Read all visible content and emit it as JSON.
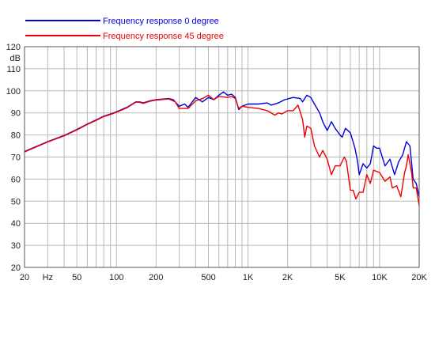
{
  "chart_data": {
    "type": "line",
    "title": "",
    "xscale": "log",
    "xlim": [
      20,
      20000
    ],
    "ylim": [
      20,
      120
    ],
    "ylabel": "dB",
    "grid": true,
    "legend_position": "top-left",
    "x_ticks": [
      {
        "value": 20,
        "label": "20"
      },
      {
        "value": 30,
        "label": "Hz"
      },
      {
        "value": 50,
        "label": "50"
      },
      {
        "value": 100,
        "label": "100"
      },
      {
        "value": 200,
        "label": "200"
      },
      {
        "value": 500,
        "label": "500"
      },
      {
        "value": 1000,
        "label": "1K"
      },
      {
        "value": 2000,
        "label": "2K"
      },
      {
        "value": 5000,
        "label": "5K"
      },
      {
        "value": 10000,
        "label": "10K"
      },
      {
        "value": 20000,
        "label": "20K"
      }
    ],
    "y_ticks": [
      {
        "value": 20,
        "label": "20"
      },
      {
        "value": 30,
        "label": "30"
      },
      {
        "value": 40,
        "label": "40"
      },
      {
        "value": 50,
        "label": "50"
      },
      {
        "value": 60,
        "label": "60"
      },
      {
        "value": 70,
        "label": "70"
      },
      {
        "value": 80,
        "label": "80"
      },
      {
        "value": 90,
        "label": "90"
      },
      {
        "value": 100,
        "label": "100"
      },
      {
        "value": 110,
        "label": "110"
      },
      {
        "value": 120,
        "label": "120"
      }
    ],
    "series": [
      {
        "name": "Frequency response 0 degree",
        "color": "#0000dd",
        "points": [
          [
            20,
            72.5
          ],
          [
            30,
            77
          ],
          [
            40,
            79.8
          ],
          [
            50,
            82.5
          ],
          [
            60,
            85
          ],
          [
            70,
            86.8
          ],
          [
            80,
            88.5
          ],
          [
            90,
            89.5
          ],
          [
            100,
            90.5
          ],
          [
            120,
            92.5
          ],
          [
            140,
            95
          ],
          [
            150,
            95
          ],
          [
            160,
            94.5
          ],
          [
            180,
            95.5
          ],
          [
            200,
            96
          ],
          [
            250,
            96.5
          ],
          [
            270,
            96
          ],
          [
            300,
            93
          ],
          [
            330,
            94
          ],
          [
            350,
            92.5
          ],
          [
            400,
            97
          ],
          [
            450,
            95
          ],
          [
            500,
            97
          ],
          [
            550,
            96
          ],
          [
            600,
            98
          ],
          [
            650,
            99.5
          ],
          [
            700,
            98
          ],
          [
            750,
            98.5
          ],
          [
            800,
            97
          ],
          [
            850,
            91.5
          ],
          [
            900,
            93
          ],
          [
            1000,
            94
          ],
          [
            1200,
            94
          ],
          [
            1400,
            94.5
          ],
          [
            1500,
            93.5
          ],
          [
            1700,
            94.5
          ],
          [
            1900,
            96
          ],
          [
            2200,
            97
          ],
          [
            2500,
            96.5
          ],
          [
            2600,
            95
          ],
          [
            2800,
            98
          ],
          [
            3000,
            97
          ],
          [
            3200,
            94
          ],
          [
            3500,
            90
          ],
          [
            3700,
            86
          ],
          [
            4000,
            82
          ],
          [
            4300,
            86
          ],
          [
            4600,
            83
          ],
          [
            5000,
            80
          ],
          [
            5200,
            79
          ],
          [
            5500,
            83
          ],
          [
            6000,
            81
          ],
          [
            6500,
            74
          ],
          [
            6800,
            68
          ],
          [
            7000,
            62
          ],
          [
            7500,
            67
          ],
          [
            8000,
            65
          ],
          [
            8500,
            67
          ],
          [
            9000,
            75
          ],
          [
            9500,
            74
          ],
          [
            10000,
            74
          ],
          [
            11000,
            66
          ],
          [
            12000,
            69
          ],
          [
            13000,
            62
          ],
          [
            14000,
            68
          ],
          [
            15000,
            71
          ],
          [
            16000,
            77
          ],
          [
            17000,
            75
          ],
          [
            18000,
            60
          ],
          [
            19000,
            58
          ],
          [
            20000,
            52
          ]
        ]
      },
      {
        "name": "Frequency response 45 degree",
        "color": "#ee0000",
        "points": [
          [
            20,
            72.3
          ],
          [
            30,
            76.8
          ],
          [
            40,
            79.6
          ],
          [
            50,
            82.3
          ],
          [
            60,
            84.8
          ],
          [
            70,
            86.6
          ],
          [
            80,
            88.3
          ],
          [
            90,
            89.3
          ],
          [
            100,
            90.3
          ],
          [
            120,
            92.3
          ],
          [
            140,
            94.8
          ],
          [
            150,
            94.8
          ],
          [
            160,
            94.3
          ],
          [
            180,
            95.3
          ],
          [
            200,
            95.8
          ],
          [
            250,
            96.3
          ],
          [
            280,
            95
          ],
          [
            300,
            92
          ],
          [
            350,
            92
          ],
          [
            400,
            95.5
          ],
          [
            450,
            96.5
          ],
          [
            500,
            98
          ],
          [
            550,
            96
          ],
          [
            600,
            97.5
          ],
          [
            700,
            97
          ],
          [
            750,
            97.5
          ],
          [
            800,
            96.5
          ],
          [
            850,
            92
          ],
          [
            900,
            93
          ],
          [
            1000,
            92.5
          ],
          [
            1200,
            92
          ],
          [
            1400,
            91
          ],
          [
            1600,
            89
          ],
          [
            1700,
            90
          ],
          [
            1800,
            89.5
          ],
          [
            2000,
            91
          ],
          [
            2200,
            91
          ],
          [
            2400,
            93.5
          ],
          [
            2600,
            87
          ],
          [
            2700,
            79
          ],
          [
            2800,
            84
          ],
          [
            3000,
            83
          ],
          [
            3200,
            75
          ],
          [
            3500,
            70
          ],
          [
            3700,
            73
          ],
          [
            4000,
            69
          ],
          [
            4300,
            62
          ],
          [
            4600,
            66
          ],
          [
            5000,
            66
          ],
          [
            5400,
            70
          ],
          [
            5600,
            68
          ],
          [
            6000,
            55
          ],
          [
            6300,
            55
          ],
          [
            6600,
            51
          ],
          [
            7000,
            54
          ],
          [
            7500,
            54
          ],
          [
            8000,
            62
          ],
          [
            8500,
            58
          ],
          [
            9000,
            64
          ],
          [
            10000,
            63
          ],
          [
            11000,
            59
          ],
          [
            12000,
            61
          ],
          [
            12500,
            56
          ],
          [
            13500,
            57
          ],
          [
            14500,
            52
          ],
          [
            15500,
            63
          ],
          [
            16000,
            66
          ],
          [
            16500,
            71
          ],
          [
            17500,
            63
          ],
          [
            18000,
            56
          ],
          [
            19000,
            56
          ],
          [
            20000,
            48
          ]
        ]
      }
    ]
  }
}
